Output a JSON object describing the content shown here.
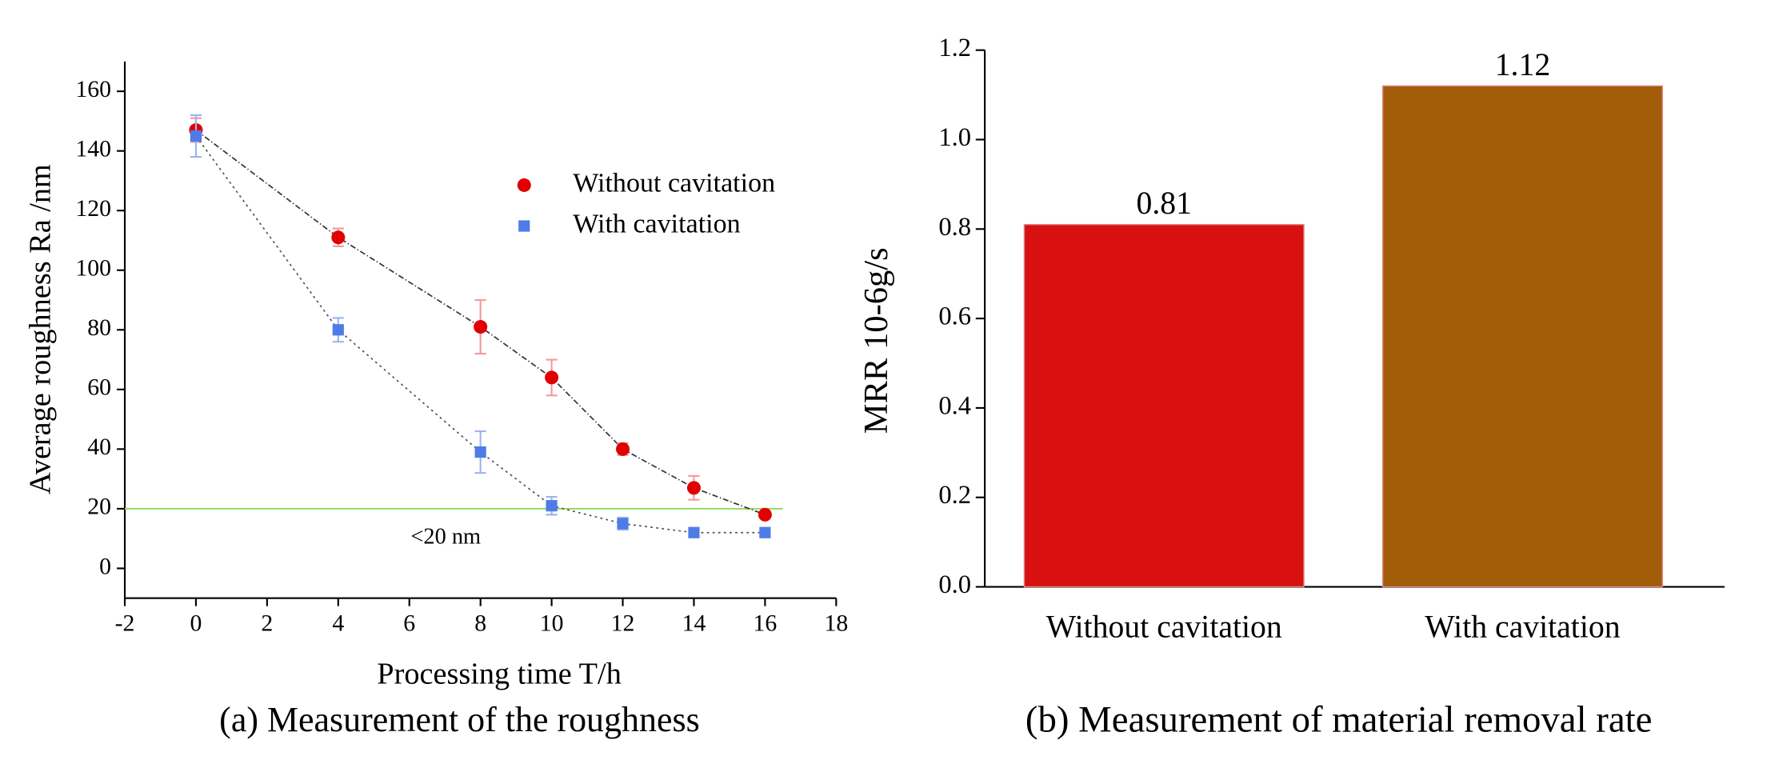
{
  "chart_data": [
    {
      "type": "scatter",
      "title": "(a) Measurement of the roughness",
      "x_label": "Processing time T/h",
      "y_label": "Average roughness  Ra /nm",
      "x": [
        0,
        4,
        8,
        10,
        12,
        14,
        16
      ],
      "series": [
        {
          "name": "Without cavitation",
          "color": "#e00000",
          "marker": "circle",
          "values": [
            147,
            111,
            81,
            64,
            40,
            27,
            18
          ],
          "errors": [
            4,
            3,
            9,
            6,
            2,
            4,
            1
          ]
        },
        {
          "name": "With cavitation",
          "color": "#4f7be8",
          "marker": "square",
          "values": [
            145,
            80,
            39,
            21,
            15,
            12,
            12
          ],
          "errors": [
            7,
            4,
            7,
            3,
            2,
            1,
            1
          ]
        }
      ],
      "reference_line": {
        "value": 20,
        "label": "<20 nm",
        "color": "#9bdc6e"
      },
      "xlim": [
        -2,
        18
      ],
      "xticks": [
        -2,
        0,
        2,
        4,
        6,
        8,
        10,
        12,
        14,
        16,
        18
      ],
      "ylim": [
        -10,
        170
      ],
      "yticks": [
        0,
        20,
        40,
        60,
        80,
        100,
        120,
        140,
        160
      ]
    },
    {
      "type": "bar",
      "title": "(b) Measurement of material removal rate",
      "y_label": "MRR 10-6g/s",
      "categories": [
        "Without cavitation",
        "With cavitation"
      ],
      "values": [
        0.81,
        1.12
      ],
      "value_labels": [
        "0.81",
        "1.12"
      ],
      "colors": [
        "#d81010",
        "#a35c08"
      ],
      "ylim": [
        0,
        1.2
      ],
      "yticks": [
        {
          "value": 0,
          "label": "0.0"
        },
        0.2,
        0.4,
        0.6,
        0.8,
        {
          "value": 1,
          "label": "1.0"
        },
        1.2
      ]
    }
  ]
}
